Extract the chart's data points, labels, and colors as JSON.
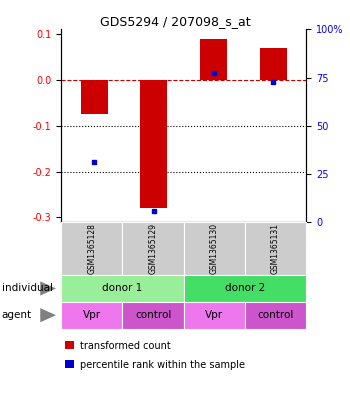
{
  "title": "GDS5294 / 207098_s_at",
  "samples": [
    "GSM1365128",
    "GSM1365129",
    "GSM1365130",
    "GSM1365131"
  ],
  "bar_values": [
    -0.075,
    -0.28,
    0.09,
    0.07
  ],
  "percentile_values": [
    -0.18,
    -0.285,
    0.015,
    -0.005
  ],
  "ylim": [
    -0.31,
    0.11
  ],
  "yticks_left": [
    -0.3,
    -0.2,
    -0.1,
    0.0,
    0.1
  ],
  "yticks_right": [
    0,
    25,
    50,
    75,
    100
  ],
  "hlines": [
    -0.1,
    -0.2
  ],
  "dashed_line_y": 0.0,
  "bar_color": "#cc0000",
  "percentile_color": "#0000cc",
  "bar_width": 0.45,
  "individual_colors": [
    "#99ee99",
    "#44dd66"
  ],
  "agent_labels": [
    "Vpr",
    "control",
    "Vpr",
    "control"
  ],
  "agent_color_vpr": "#ee77ee",
  "agent_color_ctrl": "#cc55cc",
  "gsm_bg_color": "#cccccc",
  "tick_fontsize": 7,
  "title_fontsize": 9,
  "table_fontsize": 7.5,
  "legend_fontsize": 7
}
